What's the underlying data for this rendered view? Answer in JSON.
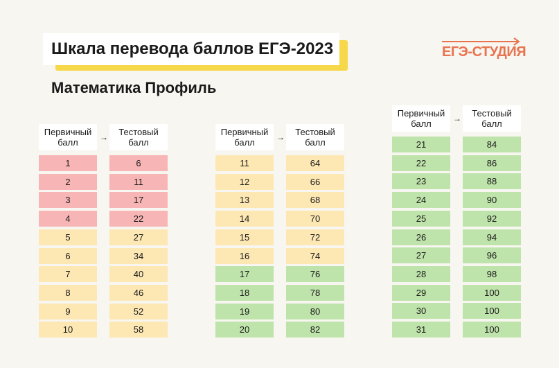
{
  "title": "Шкала перевода баллов ЕГЭ-2023",
  "subtitle": "Математика Профиль",
  "logo": "ЕГЭ-СТУДИЯ",
  "headers": {
    "primary": [
      "Первичный",
      "балл"
    ],
    "test": [
      "Тестовый",
      "балл"
    ],
    "arrow": "→"
  },
  "colors": {
    "red": "#f7b5b5",
    "yellow": "#fde8b4",
    "green": "#bfe4ab",
    "accent": "#e8734f",
    "highlight": "#f6d84a"
  },
  "tables": [
    {
      "rows": [
        {
          "p": "1",
          "t": "6",
          "c": "red"
        },
        {
          "p": "2",
          "t": "11",
          "c": "red"
        },
        {
          "p": "3",
          "t": "17",
          "c": "red"
        },
        {
          "p": "4",
          "t": "22",
          "c": "red"
        },
        {
          "p": "5",
          "t": "27",
          "c": "yellow"
        },
        {
          "p": "6",
          "t": "34",
          "c": "yellow"
        },
        {
          "p": "7",
          "t": "40",
          "c": "yellow"
        },
        {
          "p": "8",
          "t": "46",
          "c": "yellow"
        },
        {
          "p": "9",
          "t": "52",
          "c": "yellow"
        },
        {
          "p": "10",
          "t": "58",
          "c": "yellow"
        }
      ]
    },
    {
      "rows": [
        {
          "p": "11",
          "t": "64",
          "c": "yellow"
        },
        {
          "p": "12",
          "t": "66",
          "c": "yellow"
        },
        {
          "p": "13",
          "t": "68",
          "c": "yellow"
        },
        {
          "p": "14",
          "t": "70",
          "c": "yellow"
        },
        {
          "p": "15",
          "t": "72",
          "c": "yellow"
        },
        {
          "p": "16",
          "t": "74",
          "c": "yellow"
        },
        {
          "p": "17",
          "t": "76",
          "c": "green"
        },
        {
          "p": "18",
          "t": "78",
          "c": "green"
        },
        {
          "p": "19",
          "t": "80",
          "c": "green"
        },
        {
          "p": "20",
          "t": "82",
          "c": "green"
        }
      ]
    },
    {
      "rows": [
        {
          "p": "21",
          "t": "84",
          "c": "green"
        },
        {
          "p": "22",
          "t": "86",
          "c": "green"
        },
        {
          "p": "23",
          "t": "88",
          "c": "green"
        },
        {
          "p": "24",
          "t": "90",
          "c": "green"
        },
        {
          "p": "25",
          "t": "92",
          "c": "green"
        },
        {
          "p": "26",
          "t": "94",
          "c": "green"
        },
        {
          "p": "27",
          "t": "96",
          "c": "green"
        },
        {
          "p": "28",
          "t": "98",
          "c": "green"
        },
        {
          "p": "29",
          "t": "100",
          "c": "green"
        },
        {
          "p": "30",
          "t": "100",
          "c": "green"
        },
        {
          "p": "31",
          "t": "100",
          "c": "green"
        }
      ]
    }
  ]
}
